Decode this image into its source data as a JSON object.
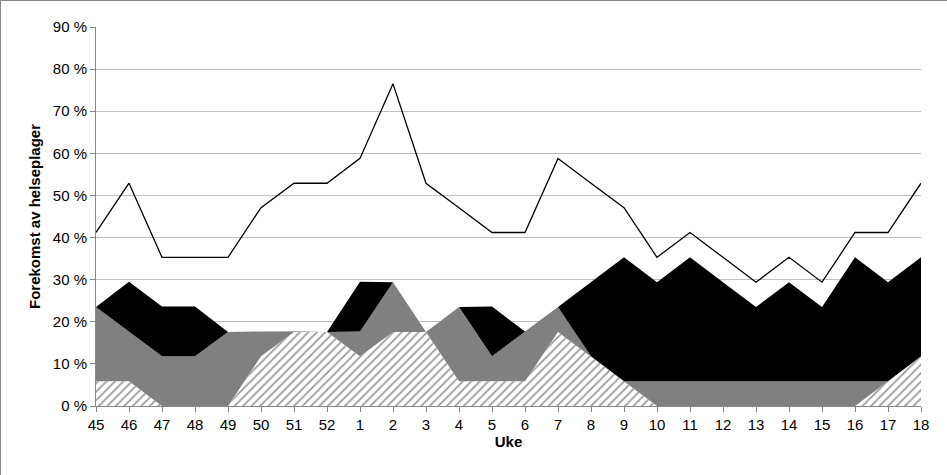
{
  "chart_data": {
    "type": "area",
    "stacked": true,
    "grid": true,
    "x_label": "Uke",
    "y_label": "Forekomst av helseplager",
    "categories": [
      "45",
      "46",
      "47",
      "48",
      "49",
      "50",
      "51",
      "52",
      "1",
      "2",
      "3",
      "4",
      "5",
      "6",
      "7",
      "8",
      "9",
      "10",
      "11",
      "12",
      "13",
      "14",
      "15",
      "16",
      "17",
      "18"
    ],
    "series": [
      {
        "type": "area",
        "color": "#9a9a9a",
        "values": [
          5.9,
          5.9,
          0,
          0,
          0,
          11.8,
          17.6,
          17.6,
          11.8,
          17.6,
          17.6,
          5.9,
          5.9,
          5.9,
          17.6,
          11.8,
          5.9,
          0,
          0,
          0,
          0,
          0,
          0,
          0,
          5.9,
          11.8
        ]
      },
      {
        "type": "area",
        "color": "#808080",
        "values": [
          17.6,
          11.8,
          11.8,
          11.8,
          17.6,
          5.9,
          0,
          0,
          5.9,
          11.8,
          0,
          17.6,
          5.9,
          11.8,
          5.9,
          0,
          0,
          5.9,
          5.9,
          5.9,
          5.9,
          5.9,
          5.9,
          5.9,
          0,
          0
        ]
      },
      {
        "type": "area",
        "color": "#000000",
        "values": [
          0,
          11.8,
          11.8,
          11.8,
          0,
          0,
          0,
          0,
          11.8,
          0,
          0,
          0,
          11.8,
          0,
          0,
          17.6,
          29.4,
          23.5,
          29.4,
          23.5,
          17.6,
          23.5,
          17.6,
          29.4,
          23.5,
          23.5
        ]
      },
      {
        "type": "line",
        "color": "#000000",
        "values": [
          41.2,
          52.9,
          35.3,
          35.3,
          35.3,
          47.1,
          52.9,
          52.9,
          58.8,
          76.5,
          52.9,
          47.1,
          41.2,
          41.2,
          58.8,
          52.9,
          47.1,
          35.3,
          41.2,
          35.3,
          29.4,
          35.3,
          29.4,
          41.2,
          41.2,
          52.9
        ]
      }
    ],
    "ylim": [
      0,
      90
    ],
    "yticks": [
      {
        "value": 0,
        "label": "0 %"
      },
      {
        "value": 10,
        "label": "10 %"
      },
      {
        "value": 20,
        "label": "20 %"
      },
      {
        "value": 30,
        "label": "30 %"
      },
      {
        "value": 40,
        "label": "40 %"
      },
      {
        "value": 50,
        "label": "50 %"
      },
      {
        "value": 60,
        "label": "60 %"
      },
      {
        "value": 70,
        "label": "70 %"
      },
      {
        "value": 80,
        "label": "80 %"
      },
      {
        "value": 90,
        "label": "90 %"
      }
    ]
  }
}
